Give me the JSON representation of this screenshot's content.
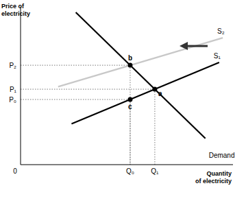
{
  "chart_data": {
    "type": "line",
    "ylabel": [
      "Price of",
      "electricity"
    ],
    "xlabel": [
      "Quantity",
      "of electricity"
    ],
    "xlim": [
      0,
      100
    ],
    "ylim": [
      0,
      100
    ],
    "xticks": [
      0,
      {
        "value": 51.6,
        "label": "Q₀"
      },
      {
        "value": 63.2,
        "label": "Q₁"
      }
    ],
    "yticks": [
      {
        "value": 41.3,
        "label": "P₀"
      },
      {
        "value": 47.8,
        "label": "P₁"
      },
      {
        "value": 63,
        "label": "P₂"
      }
    ],
    "grid": false,
    "series": [
      {
        "name": "S₂",
        "color": "#c8c8c8",
        "x": [
          17.7,
          95.2
        ],
        "values": [
          49.4,
          80.4
        ]
      },
      {
        "name": "S₁",
        "color": "#000000",
        "x": [
          24,
          93.5
        ],
        "values": [
          25.9,
          64.8
        ]
      },
      {
        "name": "Demand",
        "color": "#000000",
        "x": [
          26,
          87
        ],
        "values": [
          96.5,
          16.6
        ]
      }
    ],
    "points": [
      {
        "label": "a",
        "x": 63.2,
        "y": 47.8
      },
      {
        "label": "b",
        "x": 51.6,
        "y": 63
      },
      {
        "label": "c",
        "x": 51.6,
        "y": 41.3
      }
    ]
  }
}
